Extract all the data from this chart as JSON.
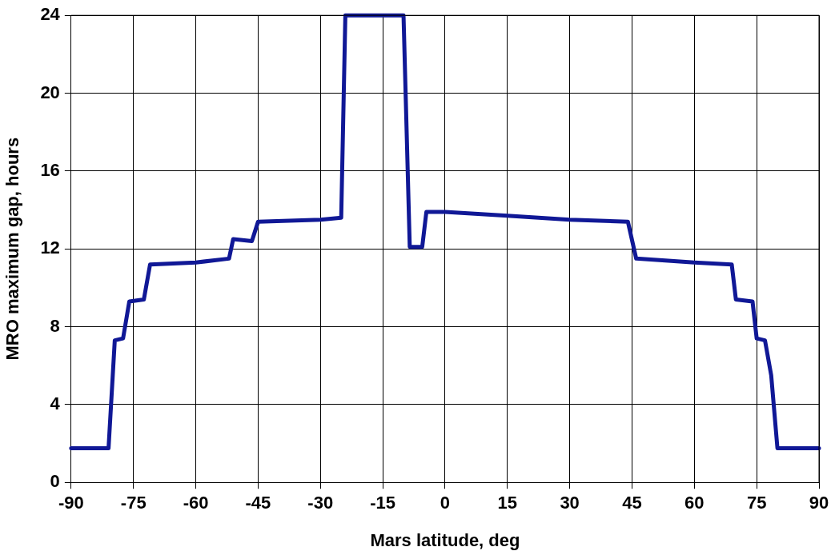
{
  "chart_data": {
    "type": "line",
    "xlabel": "Mars latitude, deg",
    "ylabel": "MRO maximum gap, hours",
    "xlim": [
      -90,
      90
    ],
    "xticks": [
      -90,
      -75,
      -60,
      -45,
      -30,
      -15,
      0,
      15,
      30,
      45,
      60,
      75,
      90
    ],
    "ylim": [
      0,
      24
    ],
    "yticks": [
      0,
      4,
      8,
      12,
      16,
      20,
      24
    ],
    "grid": true,
    "legend": false,
    "marker": "none",
    "line_style": "solid",
    "series": [
      {
        "color": "#101896",
        "x": [
          -90,
          -81,
          -79.5,
          -77.5,
          -76,
          -72.5,
          -71,
          -60,
          -52,
          -51,
          -46.5,
          -45,
          -30,
          -25,
          -24,
          -10,
          -8.5,
          -5.5,
          -4.5,
          0,
          15,
          30,
          44,
          46,
          60,
          69,
          70,
          74,
          75,
          77,
          78.5,
          80,
          90
        ],
        "values": [
          1.75,
          1.75,
          7.3,
          7.4,
          9.3,
          9.4,
          11.2,
          11.3,
          11.5,
          12.5,
          12.4,
          13.4,
          13.5,
          13.6,
          24,
          24,
          12.1,
          12.1,
          13.9,
          13.9,
          13.7,
          13.5,
          13.4,
          11.5,
          11.3,
          11.2,
          9.4,
          9.3,
          7.4,
          7.3,
          5.5,
          1.75,
          1.75
        ]
      }
    ]
  }
}
